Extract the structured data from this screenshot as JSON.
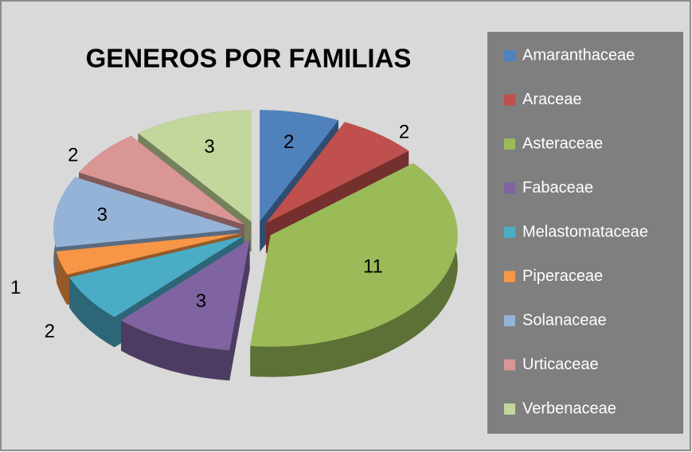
{
  "chart_data": {
    "type": "pie",
    "title": "GENEROS POR FAMILIAS",
    "categories": [
      "Amaranthaceae",
      "Araceae",
      "Asteraceae",
      "Fabaceae",
      "Melastomataceae",
      "Piperaceae",
      "Solanaceae",
      "Urticaceae",
      "Verbenaceae"
    ],
    "values": [
      2,
      2,
      11,
      3,
      2,
      1,
      3,
      2,
      3
    ],
    "colors": [
      "#4f81bd",
      "#c0504d",
      "#9bbb59",
      "#8064a2",
      "#4bacc6",
      "#f79646",
      "#95b3d7",
      "#d99694",
      "#c3d69b"
    ],
    "legend": "right"
  }
}
